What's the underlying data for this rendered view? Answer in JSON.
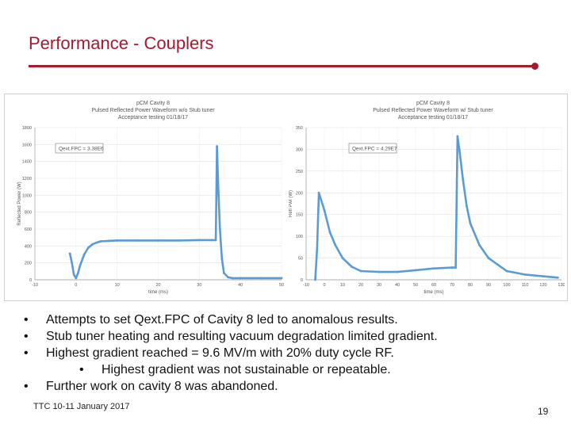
{
  "slide": {
    "title": "Performance - Couplers",
    "accent_color": "#a6192e",
    "footer": "TTC 10-11 January 2017",
    "page_number": "19"
  },
  "bullets": [
    {
      "text": "Attempts to set Qext.FPC of Cavity 8 led to anomalous results.",
      "level": 1
    },
    {
      "text": "Stub tuner heating and resulting vacuum degradation limited gradient.",
      "level": 1
    },
    {
      "text": "Highest gradient reached = 9.6 MV/m with 20% duty cycle RF.",
      "level": 1
    },
    {
      "text": "Highest gradient was not sustainable or repeatable.",
      "level": 2
    },
    {
      "text": "Further work on cavity 8 was abandoned.",
      "level": 1
    }
  ],
  "chart_data": [
    {
      "type": "scatter",
      "title": [
        "pCM Cavity 8",
        "Pulsed Reflected Power Waveform w/o Stub tuner",
        "Acceptance testing 01/18/17"
      ],
      "xlabel": "time (ms)",
      "ylabel": "Reflected Power (W)",
      "xlim": [
        -10,
        50
      ],
      "ylim": [
        0,
        1800
      ],
      "xticks": [
        "-10",
        "0",
        "10",
        "20",
        "30",
        "40",
        "50"
      ],
      "yticks": [
        "0",
        "200",
        "400",
        "600",
        "800",
        "1000",
        "1200",
        "1400",
        "1600",
        "1800"
      ],
      "annotation": "Qext.FPC = 3.38E6",
      "series_color": "#5b9bd5",
      "series": [
        {
          "x": [
            -1.5,
            -1,
            -0.5,
            0,
            0.5,
            1,
            2,
            3,
            4,
            5,
            6,
            8,
            10,
            15,
            20,
            25,
            30,
            33,
            34,
            34.3,
            34.6,
            35,
            35.5,
            36,
            37,
            38,
            40,
            45,
            50
          ],
          "y": [
            310,
            200,
            60,
            20,
            80,
            170,
            300,
            380,
            420,
            440,
            455,
            460,
            465,
            465,
            465,
            465,
            470,
            470,
            470,
            1580,
            1100,
            600,
            250,
            80,
            30,
            20,
            20,
            20,
            20
          ]
        }
      ]
    },
    {
      "type": "scatter",
      "title": [
        "pCM Cavity 8",
        "Pulsed Reflected Power Waveform w/ Stub tuner",
        "Acceptance testing 01/18/17"
      ],
      "xlabel": "time (ms)",
      "ylabel": "Refl Pwr (W)",
      "xlim": [
        -10,
        130
      ],
      "ylim": [
        0,
        350
      ],
      "xticks": [
        "-10",
        "0",
        "10",
        "20",
        "30",
        "40",
        "50",
        "60",
        "70",
        "80",
        "90",
        "100",
        "110",
        "120",
        "130"
      ],
      "yticks": [
        "0",
        "50",
        "100",
        "150",
        "200",
        "250",
        "300",
        "350"
      ],
      "annotation": "Qext.FPC = 4.29E7",
      "series_color": "#5b9bd5",
      "series": [
        {
          "x": [
            -5,
            -4,
            -3,
            0,
            3,
            6,
            10,
            15,
            20,
            30,
            40,
            50,
            60,
            70,
            72,
            73,
            74,
            76,
            78,
            80,
            85,
            90,
            95,
            100,
            110,
            120,
            128
          ],
          "y": [
            0,
            70,
            200,
            160,
            110,
            80,
            50,
            30,
            20,
            18,
            18,
            22,
            26,
            28,
            28,
            330,
            300,
            230,
            170,
            130,
            80,
            50,
            35,
            20,
            12,
            8,
            5
          ]
        }
      ]
    }
  ]
}
